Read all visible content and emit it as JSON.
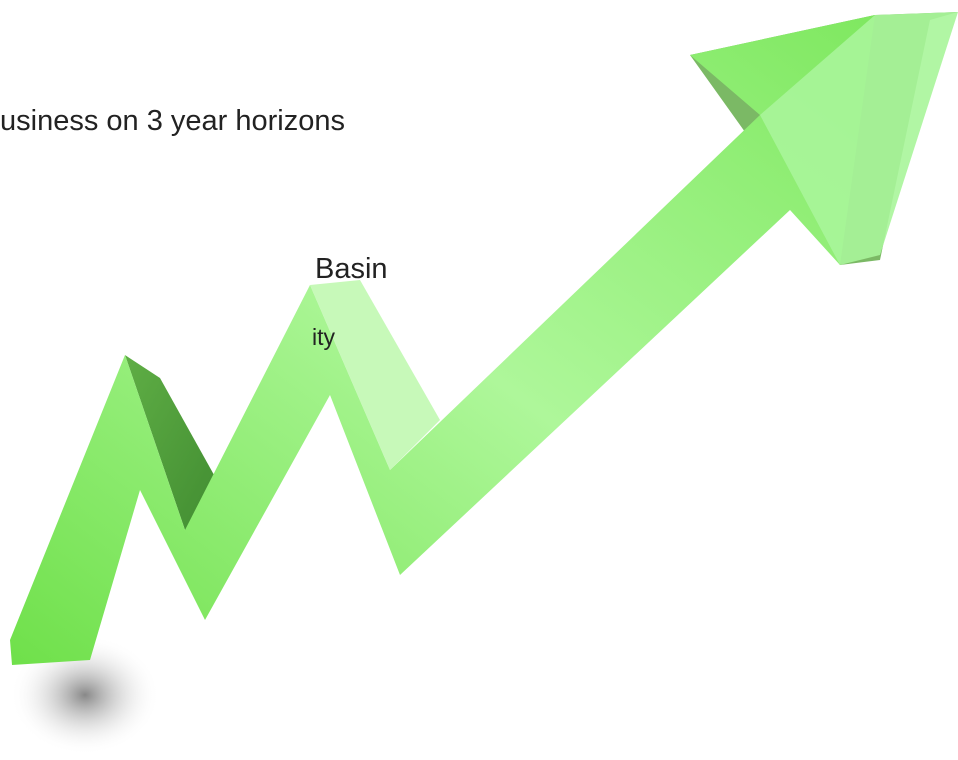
{
  "texts": {
    "line1": "usiness on 3 year horizons",
    "line2": "Basin",
    "line3": "ity"
  }
}
